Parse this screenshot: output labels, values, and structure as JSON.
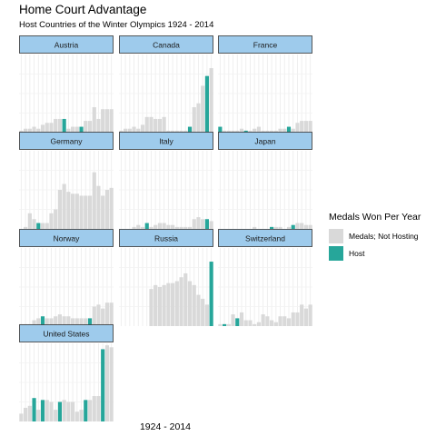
{
  "chart_data": {
    "type": "bar",
    "title": "Home Court Advantage",
    "subtitle": "Host Countries of the Winter Olympics 1924 - 2014",
    "xlabel": "1924 - 2014",
    "ylabel": "",
    "legend": {
      "title": "Medals Won Per Year",
      "position": "right",
      "entries": [
        {
          "name": "Medals; Not Hosting",
          "color": "#d9d9d9"
        },
        {
          "name": "Host",
          "color": "#26a69a"
        }
      ]
    },
    "strip_color": "#9ecbec",
    "ylim": [
      0,
      40
    ],
    "grid": true,
    "facets": [
      {
        "name": "Austria",
        "values": [
          1,
          2,
          2,
          3,
          2,
          4,
          5,
          5,
          7,
          7,
          7,
          2,
          3,
          3,
          3,
          6,
          6,
          13,
          7,
          12,
          12,
          12
        ],
        "host": [
          10,
          14
        ]
      },
      {
        "name": "Canada",
        "values": [
          1,
          2,
          2,
          3,
          2,
          4,
          8,
          8,
          7,
          7,
          8,
          1,
          1,
          1,
          1,
          1,
          3,
          13,
          15,
          24,
          29,
          33
        ],
        "host": [
          16,
          20
        ]
      },
      {
        "name": "France",
        "values": [
          3,
          1,
          1,
          1,
          1,
          2,
          1,
          1,
          2,
          3,
          1,
          1,
          1,
          1,
          2,
          2,
          3,
          2,
          5,
          6,
          6,
          6
        ],
        "host": [
          0,
          6,
          16
        ]
      },
      {
        "name": "Germany",
        "values": [
          0,
          1,
          8,
          5,
          3,
          3,
          3,
          8,
          10,
          20,
          23,
          19,
          18,
          18,
          17,
          17,
          17,
          29,
          22,
          17,
          20,
          21
        ],
        "host": [
          4
        ]
      },
      {
        "name": "Italy",
        "values": [
          0,
          0,
          0,
          1,
          2,
          1,
          3,
          1,
          2,
          3,
          3,
          2,
          2,
          1,
          1,
          1,
          1,
          5,
          6,
          5,
          5,
          4
        ],
        "host": [
          6,
          20
        ]
      },
      {
        "name": "Japan",
        "values": [
          0,
          0,
          0,
          0,
          0,
          0,
          0,
          0,
          1,
          0,
          0,
          0,
          1,
          1,
          1,
          0,
          1,
          2,
          3,
          3,
          2,
          2
        ],
        "host": [
          12,
          17
        ]
      },
      {
        "name": "Norway",
        "values": [
          1,
          1,
          1,
          3,
          4,
          5,
          4,
          4,
          5,
          6,
          5,
          5,
          4,
          4,
          4,
          4,
          4,
          10,
          11,
          9,
          12,
          12
        ],
        "host": [
          5,
          16
        ]
      },
      {
        "name": "Russia",
        "values": [
          0,
          0,
          0,
          0,
          0,
          0,
          0,
          19,
          21,
          20,
          21,
          22,
          22,
          23,
          25,
          27,
          23,
          21,
          16,
          14,
          11,
          33
        ],
        "host": [
          21
        ]
      },
      {
        "name": "Switzerland",
        "values": [
          1,
          1,
          1,
          6,
          4,
          7,
          3,
          3,
          1,
          2,
          6,
          5,
          3,
          2,
          5,
          5,
          4,
          7,
          7,
          11,
          9,
          11
        ],
        "host": [
          1,
          4
        ]
      },
      {
        "name": "United States",
        "values": [
          4,
          7,
          8,
          12,
          6,
          11,
          11,
          10,
          6,
          10,
          11,
          10,
          10,
          5,
          6,
          11,
          11,
          13,
          13,
          37,
          39,
          38
        ],
        "host": [
          3,
          5,
          9,
          15,
          19
        ]
      }
    ]
  }
}
